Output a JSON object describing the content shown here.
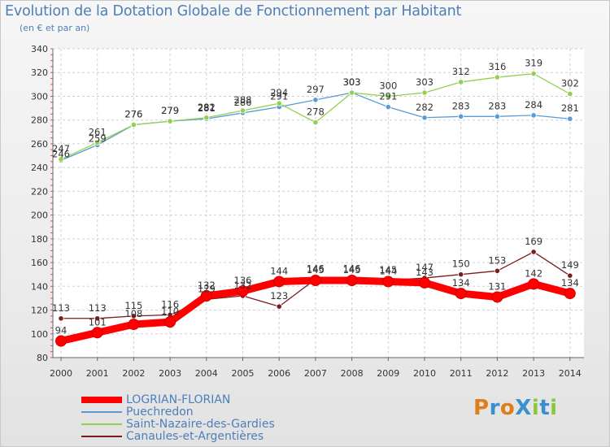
{
  "title": "Evolution de la Dotation Globale de Fonctionnement par Habitant",
  "subtitle": "(en € et par an)",
  "logo": {
    "text": "ProXiti",
    "letters": [
      "P",
      "r",
      "o",
      "X",
      "i",
      "t",
      "i"
    ],
    "colors": [
      "#e07c1a",
      "#3a8fd0",
      "#e07c1a",
      "#3a8fd0",
      "#8cc63f",
      "#3a8fd0",
      "#8cc63f"
    ]
  },
  "chart_data": {
    "type": "line",
    "title": "Evolution de la Dotation Globale de Fonctionnement par Habitant",
    "xlabel": "",
    "ylabel": "(en € et par an)",
    "ylim": [
      80,
      340
    ],
    "yticks": [
      80,
      100,
      120,
      140,
      160,
      180,
      200,
      220,
      240,
      260,
      280,
      300,
      320,
      340
    ],
    "grid": true,
    "categories": [
      "2000",
      "2001",
      "2002",
      "2003",
      "2004",
      "2005",
      "2006",
      "2007",
      "2008",
      "2009",
      "2010",
      "2011",
      "2012",
      "2013",
      "2014"
    ],
    "series": [
      {
        "name": "LOGRIAN-FLORIAN",
        "color": "#ff0000",
        "values": [
          94,
          101,
          108,
          110,
          132,
          136,
          144,
          145,
          145,
          144,
          143,
          134,
          131,
          142,
          134
        ],
        "labels": [
          "94",
          "101",
          "108",
          "110",
          "132",
          "136",
          "144",
          "145",
          "145",
          "144",
          "143",
          "134",
          "131",
          "142",
          "134"
        ]
      },
      {
        "name": "Puechredon",
        "color": "#5b9bd5",
        "values": [
          246,
          259,
          276,
          279,
          281,
          286,
          291,
          297,
          303,
          291,
          282,
          283,
          283,
          284,
          281
        ],
        "labels": [
          "246",
          "259",
          "276",
          "279",
          "281",
          "286",
          "291",
          "297",
          "303",
          "291",
          "282",
          "283",
          "283",
          "284",
          "281"
        ]
      },
      {
        "name": "Saint-Nazaire-des-Gardies",
        "color": "#92d050",
        "values": [
          247,
          261,
          276,
          279,
          282,
          288,
          294,
          278,
          303,
          300,
          303,
          312,
          316,
          319,
          302
        ],
        "labels": [
          "247",
          "261",
          "276",
          "279",
          "282",
          "288",
          "294",
          "278",
          "303",
          "300",
          "303",
          "312",
          "316",
          "319",
          "302"
        ]
      },
      {
        "name": "Canaules-et-Argentières",
        "color": "#7a1c1c",
        "values": [
          113,
          113,
          115,
          116,
          129,
          132,
          123,
          146,
          146,
          145,
          147,
          150,
          153,
          169,
          149
        ],
        "labels": [
          "113",
          "113",
          "115",
          "116",
          "129",
          "132",
          "123",
          "146",
          "146",
          "145",
          "147",
          "150",
          "153",
          "169",
          "149"
        ]
      }
    ]
  }
}
